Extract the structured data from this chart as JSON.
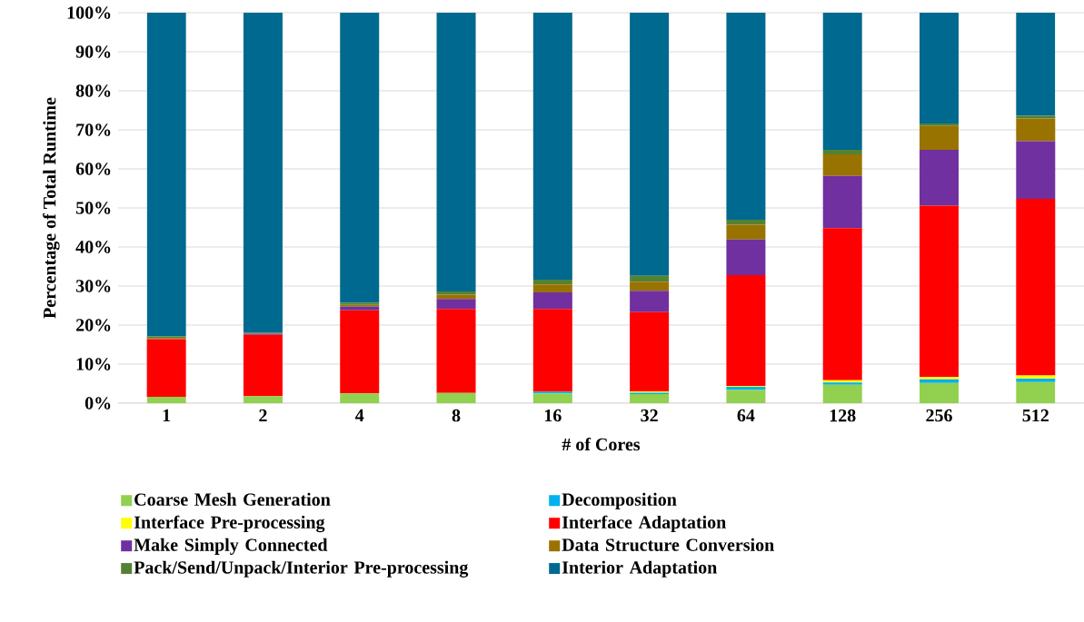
{
  "chart_data": {
    "type": "bar",
    "stacked": true,
    "xlabel": "# of Cores",
    "ylabel": "Percentage of Total Runtime",
    "categories": [
      "1",
      "2",
      "4",
      "8",
      "16",
      "32",
      "64",
      "128",
      "256",
      "512"
    ],
    "series": [
      {
        "name": "Coarse Mesh Generation",
        "color": "#92d050",
        "values": [
          1.6,
          1.8,
          2.5,
          2.6,
          2.5,
          2.3,
          3.4,
          4.7,
          5.2,
          5.4
        ]
      },
      {
        "name": "Decomposition",
        "color": "#00b0f0",
        "values": [
          0,
          0,
          0,
          0,
          0.4,
          0.4,
          0.8,
          0.6,
          0.9,
          0.9
        ]
      },
      {
        "name": "Interface Pre-processing",
        "color": "#ffff00",
        "values": [
          0,
          0,
          0,
          0,
          0,
          0.3,
          0.2,
          0.6,
          0.6,
          0.8
        ]
      },
      {
        "name": "Interface Adaptation",
        "color": "#ff0000",
        "values": [
          14.8,
          15.7,
          21.3,
          21.5,
          21.2,
          20.3,
          28.4,
          38.9,
          43.9,
          45.2
        ]
      },
      {
        "name": "Make Simply Connected",
        "color": "#7030a0",
        "values": [
          null,
          0.3,
          0.9,
          2.6,
          4.3,
          5.5,
          9.1,
          13.4,
          14.3,
          14.8
        ]
      },
      {
        "name": "Data Structure Conversion",
        "color": "#997300",
        "values": [
          0.3,
          null,
          0.5,
          1.1,
          2.0,
          2.3,
          3.8,
          5.5,
          6.1,
          5.8
        ]
      },
      {
        "name": "Pack/Send/Unpack/Interior Pre-processing",
        "color": "#548235",
        "values": [
          0.4,
          0.3,
          0.5,
          0.8,
          1.2,
          1.5,
          1.3,
          1.2,
          0.6,
          0.7
        ]
      },
      {
        "name": "Interior Adaptation",
        "color": "#00698f",
        "values": [
          82.9,
          81.9,
          74.3,
          71.4,
          68.4,
          67.4,
          53.0,
          35.1,
          28.4,
          26.4
        ]
      }
    ],
    "ylim": [
      0,
      100
    ],
    "yticks": [
      {
        "value": 0,
        "label": "0%"
      },
      {
        "value": 10,
        "label": "10%"
      },
      {
        "value": 20,
        "label": "20%"
      },
      {
        "value": 30,
        "label": "30%"
      },
      {
        "value": 40,
        "label": "40%"
      },
      {
        "value": 50,
        "label": "50%"
      },
      {
        "value": 60,
        "label": "60%"
      },
      {
        "value": 70,
        "label": "70%"
      },
      {
        "value": 80,
        "label": "80%"
      },
      {
        "value": 90,
        "label": "90%"
      },
      {
        "value": 100,
        "label": "100%"
      }
    ],
    "grid": "y",
    "legend": "bottom"
  }
}
